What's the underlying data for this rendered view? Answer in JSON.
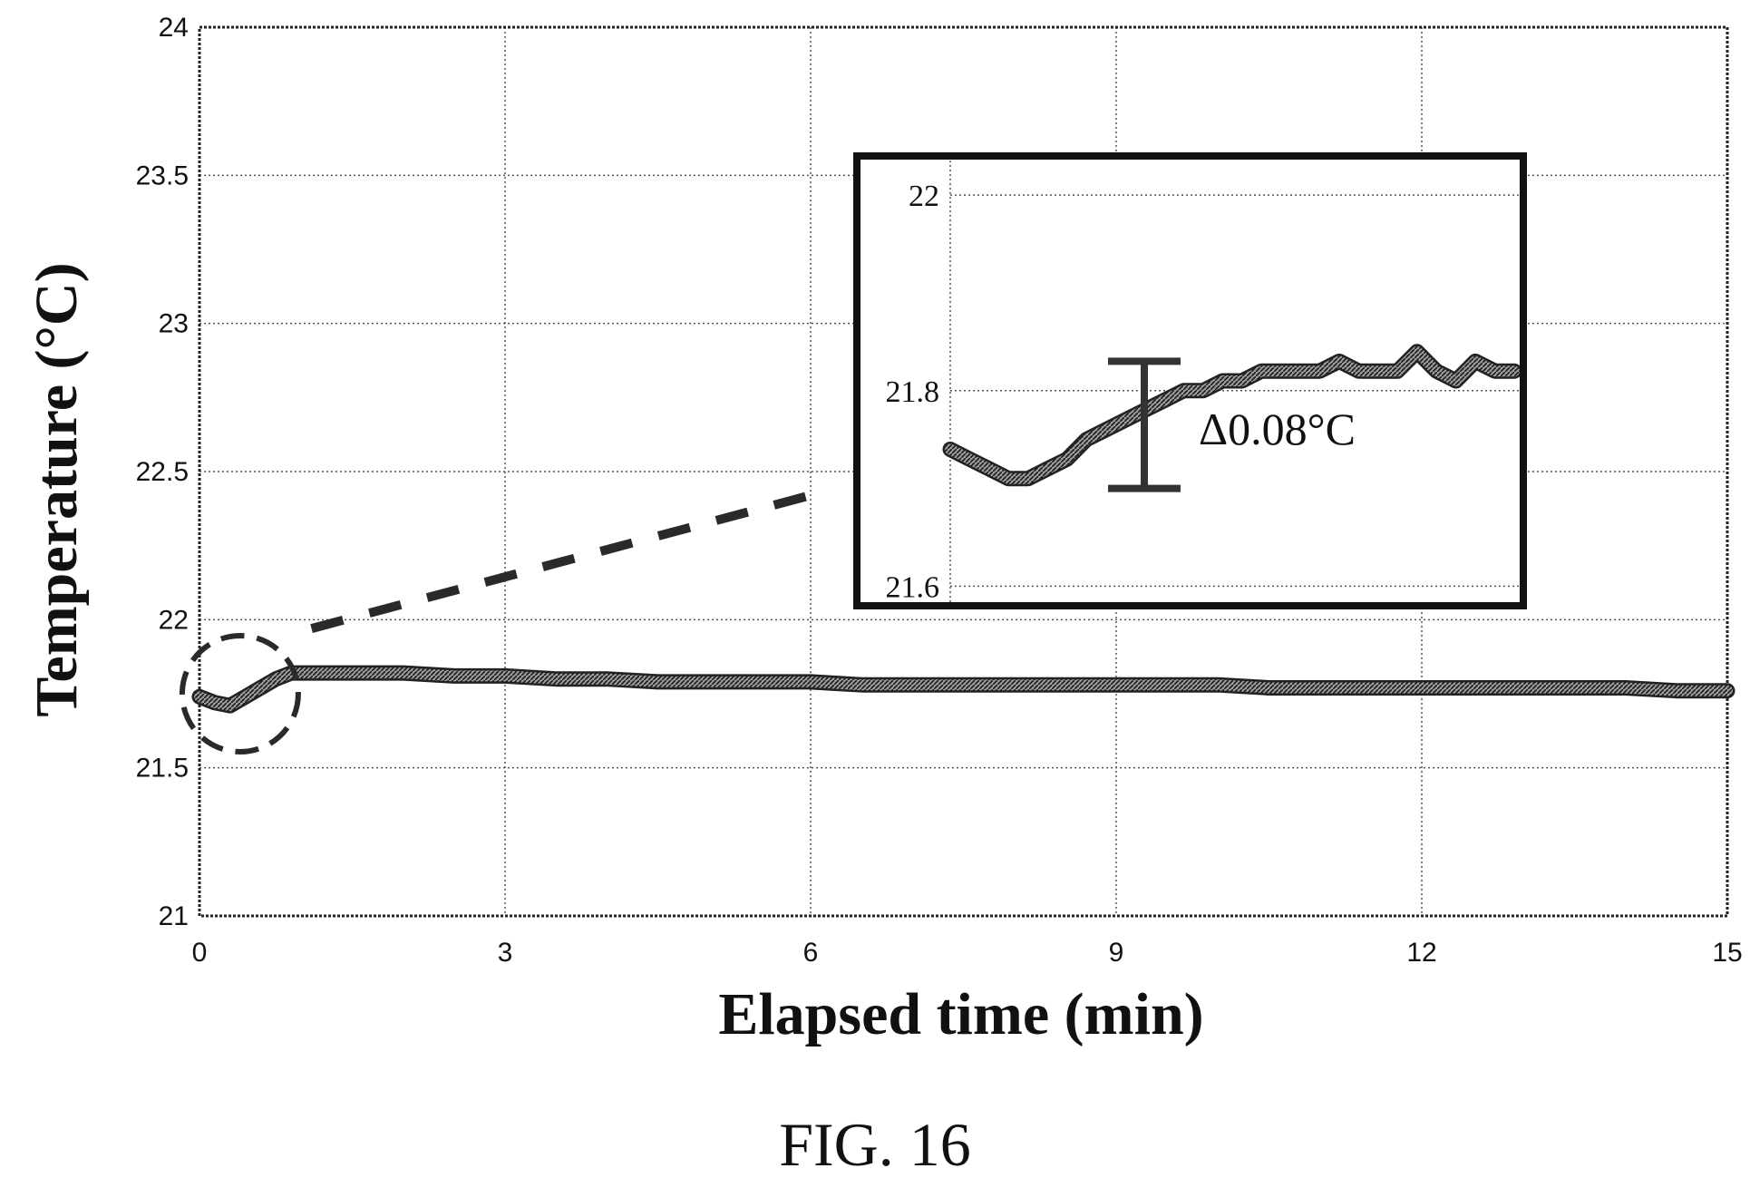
{
  "chart_data": {
    "type": "line",
    "title": "",
    "xlabel": "Elapsed time (min)",
    "ylabel": "Temperature (°C)",
    "xlim": [
      0,
      15
    ],
    "ylim": [
      21,
      24
    ],
    "xticks": [
      0,
      3,
      6,
      9,
      12,
      15
    ],
    "xtick_labels": [
      "0",
      "3",
      "6",
      "9",
      "12",
      "15"
    ],
    "yticks": [
      21,
      21.5,
      22,
      22.5,
      23,
      23.5,
      24
    ],
    "ytick_labels": [
      "21",
      "21.5",
      "22",
      "22.5",
      "23",
      "23.5",
      "24"
    ],
    "grid": true,
    "series": [
      {
        "x": [
          0,
          0.15,
          0.3,
          0.45,
          0.6,
          0.75,
          0.9,
          1.0,
          1.5,
          2,
          2.5,
          3,
          3.5,
          4,
          4.5,
          5,
          5.5,
          6,
          6.5,
          7,
          7.5,
          8,
          8.5,
          9,
          9.5,
          10,
          10.5,
          11,
          11.5,
          12,
          12.5,
          13,
          13.5,
          14,
          14.5,
          15
        ],
        "y": [
          21.74,
          21.72,
          21.71,
          21.74,
          21.77,
          21.8,
          21.82,
          21.82,
          21.82,
          21.82,
          21.81,
          21.81,
          21.8,
          21.8,
          21.79,
          21.79,
          21.79,
          21.79,
          21.78,
          21.78,
          21.78,
          21.78,
          21.78,
          21.78,
          21.78,
          21.78,
          21.77,
          21.77,
          21.77,
          21.77,
          21.77,
          21.77,
          21.77,
          21.77,
          21.76,
          21.76
        ]
      }
    ],
    "inset": {
      "ylim": [
        21.58,
        22.04
      ],
      "yticks": [
        21.6,
        21.8,
        22
      ],
      "ytick_labels": [
        "21.6",
        "21.8",
        "22"
      ],
      "x_range_min": [
        0,
        1.0
      ],
      "series_y": [
        21.74,
        21.73,
        21.72,
        21.71,
        21.71,
        21.72,
        21.73,
        21.75,
        21.76,
        21.77,
        21.78,
        21.79,
        21.8,
        21.8,
        21.81,
        21.81,
        21.82,
        21.82,
        21.82,
        21.82,
        21.83,
        21.82,
        21.82,
        21.82,
        21.84,
        21.82,
        21.81,
        21.83,
        21.82,
        21.82
      ],
      "delta_bar": [
        21.72,
        21.8
      ],
      "annotation": "Δ0.08°C"
    }
  },
  "figure": {
    "caption": "FIG. 16"
  }
}
